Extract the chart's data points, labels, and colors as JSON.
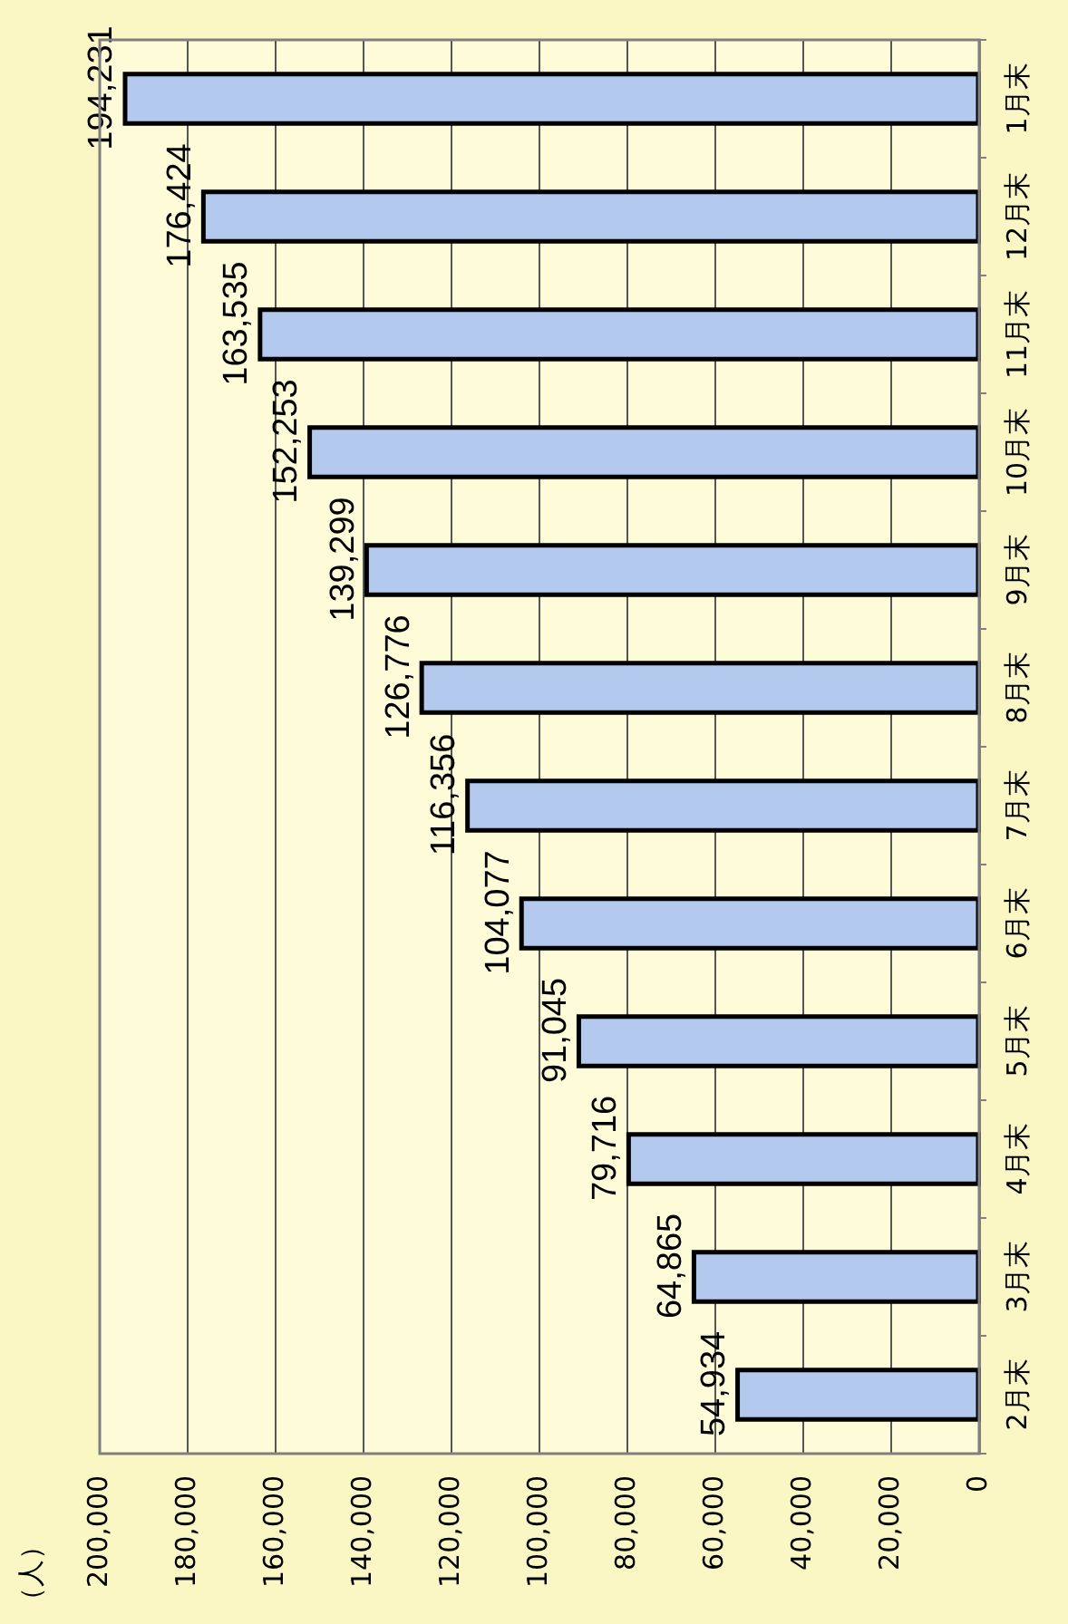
{
  "chart_data": {
    "type": "bar",
    "orientation": "horizontal",
    "ylabel": "（人）",
    "categories": [
      "1月末",
      "12月末",
      "11月末",
      "10月末",
      "9月末",
      "8月末",
      "7月末",
      "6月末",
      "5月末",
      "4月末",
      "3月末",
      "2月末"
    ],
    "values": [
      194231,
      176424,
      163535,
      152253,
      139299,
      126776,
      116356,
      104077,
      91045,
      79716,
      64865,
      54934
    ],
    "color": "#b4c9ee",
    "xlim": [
      200000,
      0
    ],
    "xticks": [
      {
        "value": 0,
        "label": "0"
      },
      {
        "value": 20000,
        "label": "20,000"
      },
      {
        "value": 40000,
        "label": "40,000"
      },
      {
        "value": 60000,
        "label": "60,000"
      },
      {
        "value": 80000,
        "label": "80,000"
      },
      {
        "value": 100000,
        "label": "100,000"
      },
      {
        "value": 120000,
        "label": "120,000"
      },
      {
        "value": 140000,
        "label": "140,000"
      },
      {
        "value": 160000,
        "label": "160,000"
      },
      {
        "value": 180000,
        "label": "180,000"
      },
      {
        "value": 200000,
        "label": "200,000"
      }
    ],
    "value_labels": [
      "194,231",
      "176,424",
      "163,535",
      "152,253",
      "139,299",
      "126,776",
      "116,356",
      "104,077",
      "91,045",
      "79,716",
      "64,865",
      "54,934"
    ],
    "grid": "x"
  }
}
